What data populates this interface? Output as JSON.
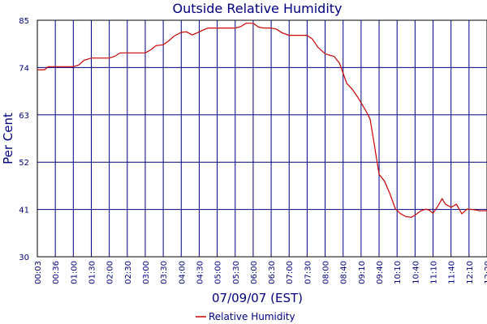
{
  "chart_data": {
    "type": "line",
    "title": "Outside Relative Humidity",
    "xlabel": "07/09/07 (EST)",
    "ylabel": "Per Cent",
    "ylim": [
      30,
      85
    ],
    "yticks": [
      30,
      41,
      52,
      63,
      74,
      85
    ],
    "xtick_labels": [
      "00:03",
      "00:36",
      "01:00",
      "01:30",
      "02:00",
      "02:30",
      "03:00",
      "03:30",
      "04:00",
      "04:30",
      "05:00",
      "05:30",
      "06:00",
      "06:30",
      "07:00",
      "07:30",
      "08:00",
      "08:40",
      "09:10",
      "09:40",
      "10:10",
      "10:40",
      "11:10",
      "11:40",
      "12:10",
      "12:20"
    ],
    "grid": true,
    "legend_position": "bottom",
    "series": [
      {
        "name": "Relative Humidity",
        "color": "#cc0000",
        "points": [
          [
            0,
            73.5
          ],
          [
            0.4,
            73.5
          ],
          [
            0.6,
            74.2
          ],
          [
            1,
            74.2
          ],
          [
            1.5,
            74.2
          ],
          [
            2,
            74.2
          ],
          [
            2.3,
            74.6
          ],
          [
            2.6,
            75.7
          ],
          [
            3,
            76.2
          ],
          [
            3.5,
            76.2
          ],
          [
            4,
            76.2
          ],
          [
            4.3,
            76.6
          ],
          [
            4.6,
            77.4
          ],
          [
            5,
            77.4
          ],
          [
            5.5,
            77.4
          ],
          [
            6,
            77.4
          ],
          [
            6.3,
            78.1
          ],
          [
            6.6,
            79.1
          ],
          [
            7,
            79.3
          ],
          [
            7.3,
            80.2
          ],
          [
            7.6,
            81.3
          ],
          [
            8,
            82.2
          ],
          [
            8.3,
            82.3
          ],
          [
            8.6,
            81.6
          ],
          [
            8.9,
            82.1
          ],
          [
            9.2,
            82.7
          ],
          [
            9.5,
            83.2
          ],
          [
            10,
            83.2
          ],
          [
            10.5,
            83.2
          ],
          [
            11,
            83.2
          ],
          [
            11.3,
            83.5
          ],
          [
            11.6,
            84.3
          ],
          [
            12,
            84.3
          ],
          [
            12.3,
            83.4
          ],
          [
            12.6,
            83.2
          ],
          [
            13,
            83.2
          ],
          [
            13.3,
            82.9
          ],
          [
            13.6,
            82.1
          ],
          [
            14,
            81.5
          ],
          [
            14.5,
            81.5
          ],
          [
            15,
            81.5
          ],
          [
            15.3,
            80.6
          ],
          [
            15.6,
            78.7
          ],
          [
            16,
            77.2
          ],
          [
            16.3,
            76.8
          ],
          [
            16.5,
            76.6
          ],
          [
            16.8,
            75.0
          ],
          [
            17,
            72.7
          ],
          [
            17.2,
            70.3
          ],
          [
            17.5,
            69.0
          ],
          [
            17.8,
            67.2
          ],
          [
            18,
            65.8
          ],
          [
            18.3,
            63.7
          ],
          [
            18.5,
            62.0
          ],
          [
            18.7,
            57.0
          ],
          [
            19,
            49.2
          ],
          [
            19.3,
            47.6
          ],
          [
            19.6,
            44.7
          ],
          [
            19.9,
            41.2
          ],
          [
            20.2,
            40.0
          ],
          [
            20.5,
            39.3
          ],
          [
            20.8,
            39.2
          ],
          [
            21,
            39.7
          ],
          [
            21.3,
            40.6
          ],
          [
            21.6,
            41.1
          ],
          [
            21.8,
            40.8
          ],
          [
            22,
            40.1
          ],
          [
            22.3,
            42.0
          ],
          [
            22.5,
            43.5
          ],
          [
            22.7,
            42.2
          ],
          [
            23,
            41.5
          ],
          [
            23.3,
            42.2
          ],
          [
            23.6,
            40.0
          ],
          [
            23.9,
            41.1
          ],
          [
            24.2,
            41.0
          ],
          [
            24.6,
            40.7
          ],
          [
            25,
            40.7
          ]
        ]
      }
    ]
  }
}
